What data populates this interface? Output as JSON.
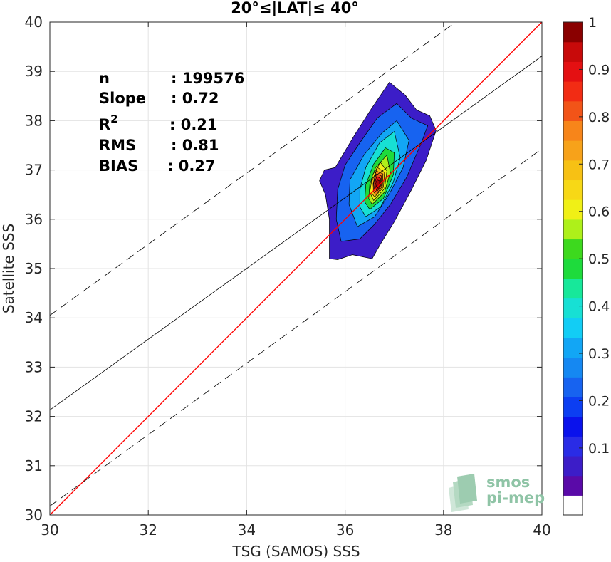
{
  "chart_data": {
    "type": "heatmap",
    "title": "20°≤|LAT|≤ 40°",
    "xlabel": "TSG (SAMOS) SSS",
    "ylabel": "Satellite SSS",
    "xlim": [
      30,
      40
    ],
    "ylim": [
      30,
      40
    ],
    "xticks": [
      30,
      32,
      34,
      36,
      38,
      40
    ],
    "yticks": [
      30,
      31,
      32,
      33,
      34,
      35,
      36,
      37,
      38,
      39,
      40
    ],
    "grid": true,
    "stats": [
      {
        "label": "n",
        "value": ": 199576"
      },
      {
        "label": "Slope",
        "value": ": 0.72"
      },
      {
        "label": "R",
        "sup": "2",
        "value": ": 0.21"
      },
      {
        "label": "RMS",
        "value": ": 0.81"
      },
      {
        "label": "BIAS",
        "value": ": 0.27"
      }
    ],
    "lines": [
      {
        "name": "one-to-one",
        "color": "#ff0000",
        "style": "solid",
        "points": [
          [
            30,
            30
          ],
          [
            40,
            40
          ]
        ]
      },
      {
        "name": "regression",
        "color": "#000000",
        "style": "solid",
        "points": [
          [
            30,
            32.13
          ],
          [
            40,
            39.31
          ]
        ]
      },
      {
        "name": "upper-bound",
        "color": "#000000",
        "style": "dashed",
        "points": [
          [
            30,
            34.05
          ],
          [
            38.25,
            40
          ]
        ]
      },
      {
        "name": "lower-bound",
        "color": "#000000",
        "style": "dashed",
        "points": [
          [
            30,
            30.18
          ],
          [
            40,
            37.43
          ]
        ]
      }
    ],
    "density_center": [
      36.68,
      36.7
    ],
    "density_contours": [
      {
        "level": 0.05,
        "color": "#3c1dc8",
        "points": [
          [
            35.68,
            35.2
          ],
          [
            35.85,
            35.18
          ],
          [
            36.15,
            35.28
          ],
          [
            36.55,
            35.2
          ],
          [
            36.72,
            35.5
          ],
          [
            37.0,
            35.95
          ],
          [
            37.35,
            36.6
          ],
          [
            37.65,
            37.2
          ],
          [
            37.85,
            37.8
          ],
          [
            37.72,
            38.1
          ],
          [
            37.45,
            38.22
          ],
          [
            37.22,
            38.52
          ],
          [
            36.9,
            38.78
          ],
          [
            36.52,
            38.22
          ],
          [
            36.2,
            37.72
          ],
          [
            35.8,
            37.05
          ],
          [
            35.58,
            37.0
          ],
          [
            35.48,
            36.78
          ],
          [
            35.6,
            36.5
          ],
          [
            35.68,
            36.0
          ]
        ]
      },
      {
        "level": 0.15,
        "color": "#1763f0",
        "points": [
          [
            35.92,
            35.55
          ],
          [
            36.3,
            35.6
          ],
          [
            36.6,
            35.9
          ],
          [
            36.92,
            36.3
          ],
          [
            37.25,
            36.85
          ],
          [
            37.55,
            37.55
          ],
          [
            37.68,
            37.9
          ],
          [
            37.35,
            38.05
          ],
          [
            37.05,
            38.35
          ],
          [
            36.65,
            38.05
          ],
          [
            36.3,
            37.55
          ],
          [
            36.0,
            37.1
          ],
          [
            35.85,
            36.6
          ],
          [
            35.82,
            36.0
          ]
        ]
      },
      {
        "level": 0.25,
        "color": "#12a6f5",
        "points": [
          [
            36.25,
            35.85
          ],
          [
            36.6,
            36.05
          ],
          [
            36.92,
            36.55
          ],
          [
            37.18,
            37.05
          ],
          [
            37.3,
            37.6
          ],
          [
            37.05,
            38.0
          ],
          [
            36.75,
            37.75
          ],
          [
            36.38,
            37.3
          ],
          [
            36.1,
            36.8
          ],
          [
            36.08,
            36.3
          ]
        ]
      },
      {
        "level": 0.35,
        "color": "#17e0d4",
        "points": [
          [
            36.42,
            36.05
          ],
          [
            36.72,
            36.25
          ],
          [
            36.98,
            36.75
          ],
          [
            37.12,
            37.25
          ],
          [
            37.0,
            37.78
          ],
          [
            36.7,
            37.55
          ],
          [
            36.42,
            37.05
          ],
          [
            36.3,
            36.6
          ],
          [
            36.3,
            36.25
          ]
        ]
      },
      {
        "level": 0.45,
        "color": "#1edb3c",
        "points": [
          [
            36.5,
            36.2
          ],
          [
            36.78,
            36.42
          ],
          [
            36.98,
            36.9
          ],
          [
            37.0,
            37.35
          ],
          [
            36.82,
            37.45
          ],
          [
            36.58,
            37.12
          ],
          [
            36.42,
            36.7
          ],
          [
            36.4,
            36.35
          ]
        ]
      },
      {
        "level": 0.55,
        "color": "#aef01a",
        "points": [
          [
            36.55,
            36.3
          ],
          [
            36.8,
            36.55
          ],
          [
            36.92,
            36.95
          ],
          [
            36.85,
            37.3
          ],
          [
            36.62,
            37.05
          ],
          [
            36.5,
            36.7
          ],
          [
            36.48,
            36.42
          ]
        ]
      },
      {
        "level": 0.65,
        "color": "#f0f016",
        "points": [
          [
            36.58,
            36.38
          ],
          [
            36.8,
            36.62
          ],
          [
            36.85,
            36.98
          ],
          [
            36.72,
            37.15
          ],
          [
            36.56,
            36.9
          ],
          [
            36.5,
            36.55
          ]
        ]
      },
      {
        "level": 0.72,
        "color": "#f7c114",
        "points": [
          [
            36.6,
            36.45
          ],
          [
            36.78,
            36.65
          ],
          [
            36.8,
            36.95
          ],
          [
            36.66,
            37.05
          ],
          [
            36.55,
            36.78
          ],
          [
            36.55,
            36.52
          ]
        ]
      },
      {
        "level": 0.78,
        "color": "#f7851a",
        "points": [
          [
            36.63,
            36.5
          ],
          [
            36.76,
            36.67
          ],
          [
            36.77,
            36.92
          ],
          [
            36.63,
            36.98
          ],
          [
            36.57,
            36.72
          ],
          [
            36.58,
            36.55
          ]
        ]
      },
      {
        "level": 0.85,
        "color": "#f25418",
        "points": [
          [
            36.64,
            36.55
          ],
          [
            36.74,
            36.68
          ],
          [
            36.74,
            36.88
          ],
          [
            36.63,
            36.92
          ],
          [
            36.58,
            36.72
          ],
          [
            36.6,
            36.58
          ]
        ]
      },
      {
        "level": 0.92,
        "color": "#e41012",
        "points": [
          [
            36.64,
            36.58
          ],
          [
            36.72,
            36.68
          ],
          [
            36.72,
            36.83
          ],
          [
            36.64,
            36.87
          ],
          [
            36.6,
            36.72
          ]
        ]
      },
      {
        "level": 0.98,
        "color": "#a80808",
        "points": [
          [
            36.65,
            36.62
          ],
          [
            36.7,
            36.68
          ],
          [
            36.7,
            36.78
          ],
          [
            36.65,
            36.8
          ],
          [
            36.62,
            36.72
          ]
        ]
      }
    ],
    "colorbar": {
      "ticks": [
        "0.1",
        "0.2",
        "0.3",
        "0.4",
        "0.5",
        "0.6",
        "0.7",
        "0.8",
        "0.9",
        "1"
      ],
      "colors": [
        "#ffffff",
        "#5a0aa8",
        "#3c1dc8",
        "#2a2ce6",
        "#0a12ec",
        "#0c3ef2",
        "#1763f0",
        "#1588f2",
        "#12a6f5",
        "#12cdf5",
        "#17e0d4",
        "#17e89a",
        "#1edb3c",
        "#3dd91e",
        "#aef01a",
        "#f0f016",
        "#f7d816",
        "#f7c114",
        "#f7a21a",
        "#f7851a",
        "#f25418",
        "#f22c14",
        "#e41012",
        "#c80a0a",
        "#8a0000"
      ]
    }
  },
  "logo": {
    "line1": "smos",
    "line2": "pi-mep",
    "color": "#8fc4a6"
  }
}
